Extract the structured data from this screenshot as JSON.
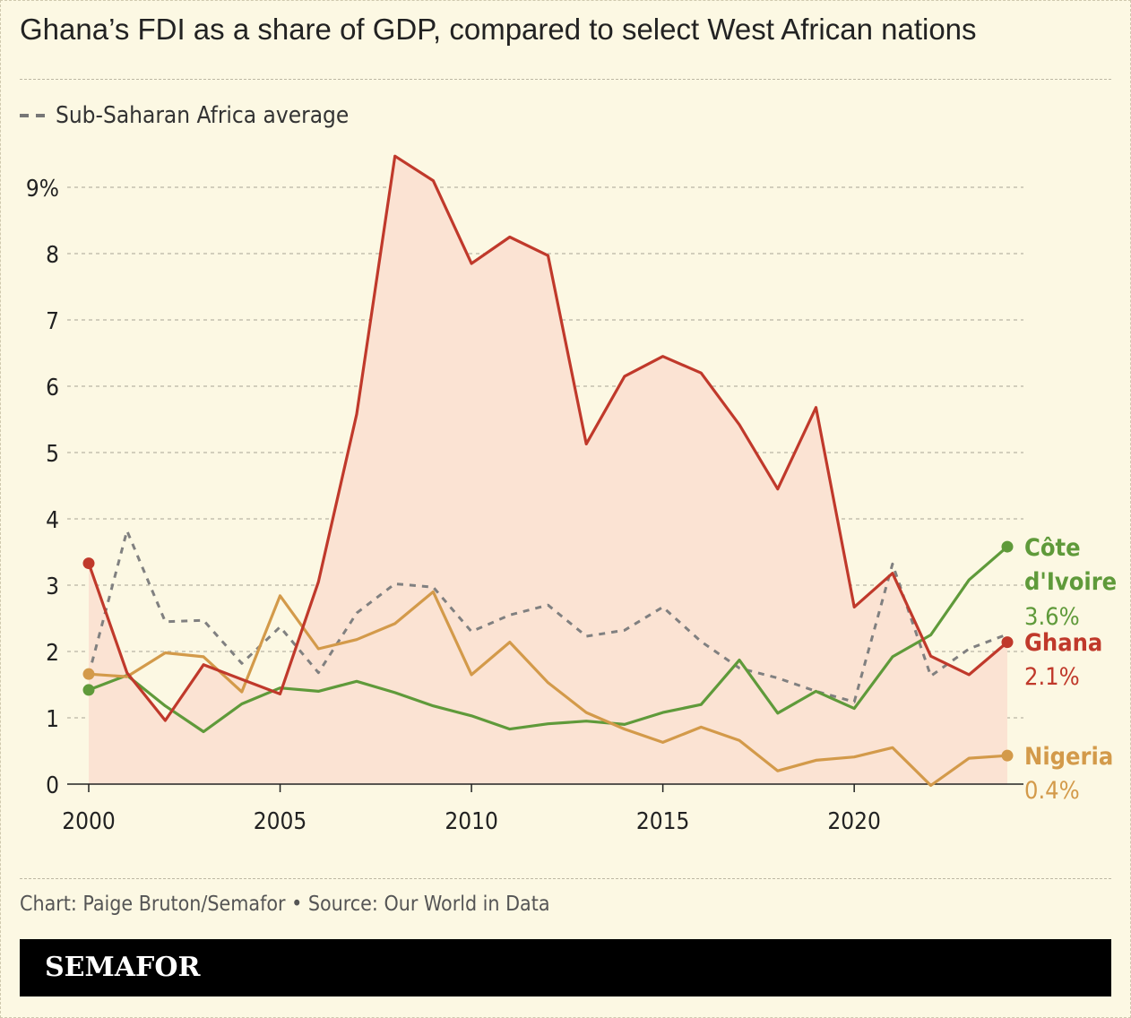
{
  "title": "Ghana’s FDI as a share of GDP, compared to select West African nations",
  "legend": {
    "label": "Sub-Saharan Africa average"
  },
  "source": "Chart: Paige Bruton/Semafor • Source: Our World in Data",
  "brand": "SEMAFOR",
  "colors": {
    "background": "#fcf8e3",
    "ghana": "#c0392b",
    "ghana_area": "#fbe3d3",
    "cote_divoire": "#5f9a3a",
    "nigeria": "#d39a4a",
    "ssa_average": "#808080",
    "grid": "#b9b5a5"
  },
  "chart_data": {
    "type": "line",
    "x": [
      2000,
      2001,
      2002,
      2003,
      2004,
      2005,
      2006,
      2007,
      2008,
      2009,
      2010,
      2011,
      2012,
      2013,
      2014,
      2015,
      2016,
      2017,
      2018,
      2019,
      2020,
      2021,
      2022,
      2023,
      2024
    ],
    "x_ticks": [
      2000,
      2005,
      2010,
      2015,
      2020
    ],
    "y_ticks": [
      0,
      1,
      2,
      3,
      4,
      5,
      6,
      7,
      8,
      9
    ],
    "y_tick_labels": [
      "0",
      "1",
      "2",
      "3",
      "4",
      "5",
      "6",
      "7",
      "8",
      "9%"
    ],
    "xlim": [
      2000,
      2024
    ],
    "ylim": [
      0,
      9.6
    ],
    "grid": true,
    "series": [
      {
        "name": "Ghana",
        "key": "ghana",
        "end_label": "Ghana",
        "end_value_label": "2.1%",
        "values": [
          3.33,
          1.68,
          0.96,
          1.8,
          1.58,
          1.36,
          3.05,
          5.58,
          9.47,
          9.1,
          7.85,
          8.25,
          7.97,
          5.13,
          6.15,
          6.45,
          6.2,
          5.42,
          4.45,
          5.68,
          2.67,
          3.18,
          1.93,
          1.65,
          2.14
        ]
      },
      {
        "name": "Côte d'Ivoire",
        "key": "cote_divoire",
        "end_label_lines": [
          "Côte",
          "d'Ivoire"
        ],
        "end_value_label": "3.6%",
        "values": [
          1.42,
          1.64,
          1.18,
          0.79,
          1.21,
          1.45,
          1.4,
          1.55,
          1.38,
          1.18,
          1.03,
          0.83,
          0.91,
          0.95,
          0.9,
          1.08,
          1.2,
          1.87,
          1.07,
          1.4,
          1.14,
          1.92,
          2.25,
          3.08,
          3.58
        ]
      },
      {
        "name": "Nigeria",
        "key": "nigeria",
        "end_label": "Nigeria",
        "end_value_label": "0.4%",
        "values": [
          1.66,
          1.62,
          1.98,
          1.92,
          1.39,
          2.84,
          2.04,
          2.18,
          2.42,
          2.9,
          1.65,
          2.14,
          1.53,
          1.08,
          0.83,
          0.63,
          0.86,
          0.66,
          0.2,
          0.36,
          0.41,
          0.55,
          -0.02,
          0.39,
          0.43
        ]
      },
      {
        "name": "Sub-Saharan Africa average",
        "key": "ssa_average",
        "dashed": true,
        "values": [
          1.65,
          3.82,
          2.45,
          2.47,
          1.82,
          2.37,
          1.68,
          2.58,
          3.02,
          2.97,
          2.3,
          2.55,
          2.7,
          2.23,
          2.32,
          2.67,
          2.15,
          1.75,
          1.6,
          1.4,
          1.24,
          3.32,
          1.63,
          2.04,
          2.26
        ]
      }
    ]
  }
}
